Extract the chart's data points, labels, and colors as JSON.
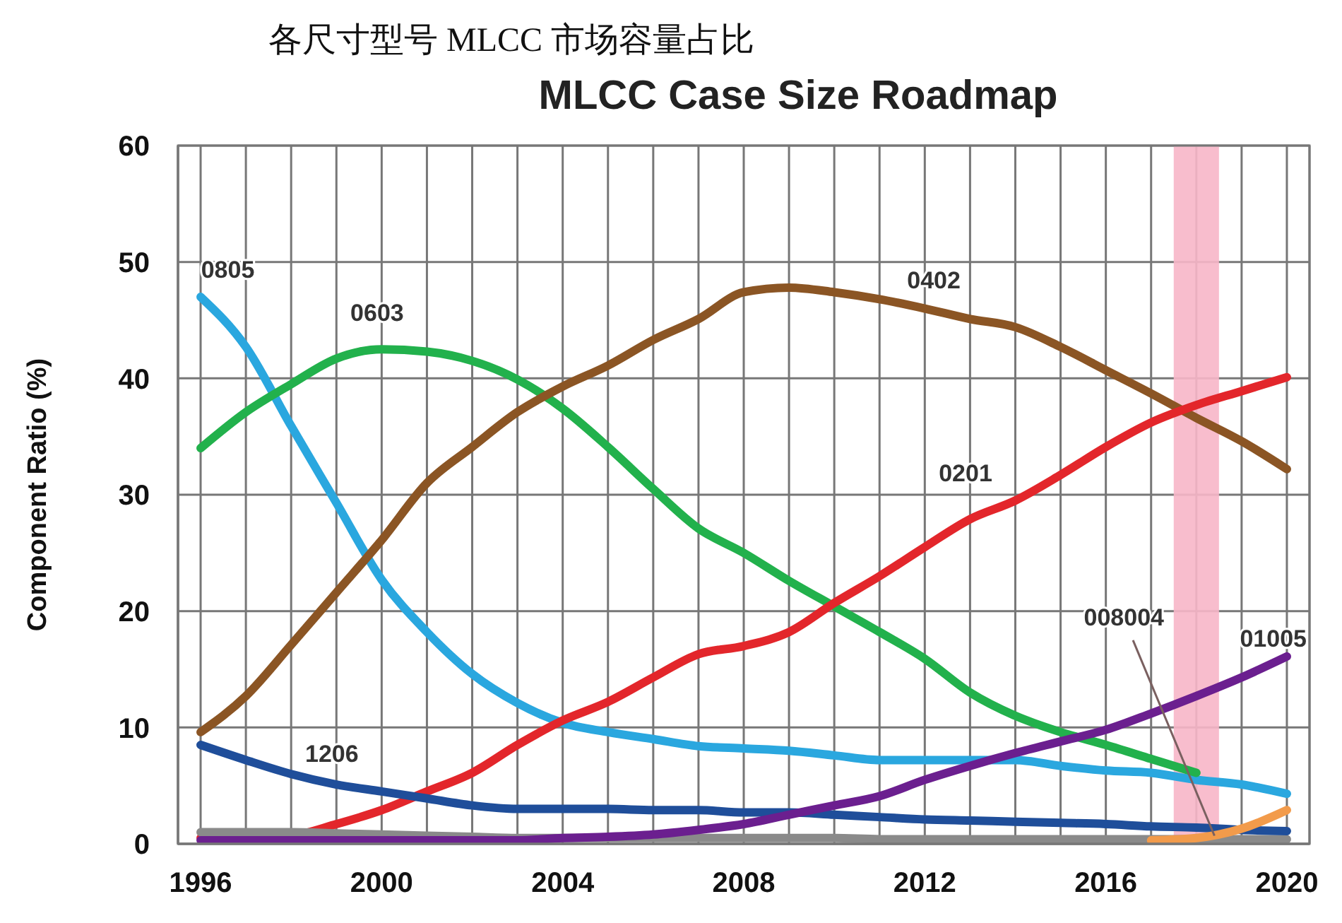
{
  "chart_data": {
    "type": "line",
    "title": "各尺寸型号 MLCC 市场容量占比",
    "subtitle": "MLCC Case Size Roadmap",
    "ylabel": "Component Ratio (%)",
    "x": [
      1996,
      1997,
      1998,
      1999,
      2000,
      2001,
      2002,
      2003,
      2004,
      2005,
      2006,
      2007,
      2008,
      2009,
      2010,
      2011,
      2012,
      2013,
      2014,
      2015,
      2016,
      2017,
      2018,
      2019,
      2020
    ],
    "series": [
      {
        "name": "0805",
        "color": "#2aa7df",
        "values": [
          47,
          42.7,
          35.9,
          29.3,
          22.7,
          18.2,
          14.6,
          12.1,
          10.4,
          9.6,
          9,
          8.4,
          8.2,
          8,
          7.6,
          7.2,
          7.2,
          7.2,
          7.2,
          6.7,
          6.3,
          6.1,
          5.5,
          5.1,
          4.3
        ]
      },
      {
        "name": "0603",
        "color": "#22b14c",
        "values": [
          34,
          37.1,
          39.5,
          41.7,
          42.5,
          42.3,
          41.5,
          39.9,
          37.4,
          34.1,
          30.5,
          27.1,
          25,
          22.6,
          20.4,
          18.2,
          15.9,
          13,
          11,
          9.6,
          8.5,
          7.3,
          6.1,
          null,
          null
        ]
      },
      {
        "name": "0402",
        "color": "#8b5524",
        "values": [
          9.6,
          12.7,
          17.1,
          21.6,
          26.1,
          31,
          34.1,
          37.1,
          39.3,
          41.1,
          43.3,
          45.1,
          47.4,
          47.8,
          47.4,
          46.8,
          46,
          45.1,
          44.4,
          42.7,
          40.7,
          38.7,
          36.6,
          34.6,
          32.2
        ]
      },
      {
        "name": "0201",
        "color": "#e3262b",
        "values": [
          0.5,
          0.5,
          0.7,
          1.7,
          2.9,
          4.5,
          6.1,
          8.5,
          10.6,
          12.2,
          14.3,
          16.3,
          17,
          18.2,
          20.7,
          23,
          25.5,
          27.9,
          29.5,
          31.7,
          34.1,
          36.2,
          37.7,
          38.9,
          40.1
        ]
      },
      {
        "color": "#8a8a8a",
        "values": [
          1,
          1,
          1,
          0.9,
          0.8,
          0.7,
          0.6,
          0.5,
          0.5,
          0.5,
          0.5,
          0.5,
          0.5,
          0.5,
          0.5,
          0.4,
          0.4,
          0.4,
          0.4,
          0.4,
          0.4,
          0.4,
          0.4,
          0.4,
          0.4
        ]
      },
      {
        "name": "1206",
        "color": "#1f4e9a",
        "values": [
          8.5,
          7.2,
          6,
          5.1,
          4.5,
          3.9,
          3.3,
          3,
          3,
          3,
          2.9,
          2.9,
          2.7,
          2.7,
          2.5,
          2.3,
          2.1,
          2,
          1.9,
          1.8,
          1.7,
          1.5,
          1.4,
          1.2,
          1.1
        ]
      },
      {
        "name": "01005",
        "color": "#6b1f8f",
        "values": [
          0.3,
          0.3,
          0.3,
          0.3,
          0.3,
          0.3,
          0.3,
          0.3,
          0.5,
          0.6,
          0.8,
          1.2,
          1.7,
          2.5,
          3.3,
          4.1,
          5.5,
          6.7,
          7.8,
          8.8,
          9.8,
          11.2,
          12.7,
          14.3,
          16.1
        ]
      },
      {
        "name": "008004",
        "color": "#f29b4b",
        "values": [
          null,
          null,
          null,
          null,
          null,
          null,
          null,
          null,
          null,
          null,
          null,
          null,
          null,
          null,
          null,
          null,
          null,
          null,
          null,
          null,
          null,
          0.3,
          0.5,
          1.3,
          2.9
        ]
      }
    ],
    "xlim": [
      1995.5,
      2020.5
    ],
    "xticks": [
      1996,
      {
        "value": 1997,
        "label": null
      },
      {
        "value": 1998,
        "label": null
      },
      {
        "value": 1999,
        "label": null
      },
      2000,
      {
        "value": 2001,
        "label": null
      },
      {
        "value": 2002,
        "label": null
      },
      {
        "value": 2003,
        "label": null
      },
      2004,
      {
        "value": 2005,
        "label": null
      },
      {
        "value": 2006,
        "label": null
      },
      {
        "value": 2007,
        "label": null
      },
      2008,
      {
        "value": 2009,
        "label": null
      },
      {
        "value": 2010,
        "label": null
      },
      {
        "value": 2011,
        "label": null
      },
      2012,
      {
        "value": 2013,
        "label": null
      },
      {
        "value": 2014,
        "label": null
      },
      {
        "value": 2015,
        "label": null
      },
      2016,
      {
        "value": 2017,
        "label": null
      },
      {
        "value": 2018,
        "label": null
      },
      {
        "value": 2019,
        "label": null
      },
      2020
    ],
    "ylim": [
      0,
      60
    ],
    "yticks": [
      0,
      10,
      20,
      30,
      40,
      50,
      60
    ],
    "bands": [
      {
        "axis": "x",
        "from": 2017.5,
        "to": 2018.5,
        "color": "#f7b6c8"
      }
    ],
    "grid": true,
    "legend": false,
    "marker": "none",
    "line_style": "solid"
  }
}
